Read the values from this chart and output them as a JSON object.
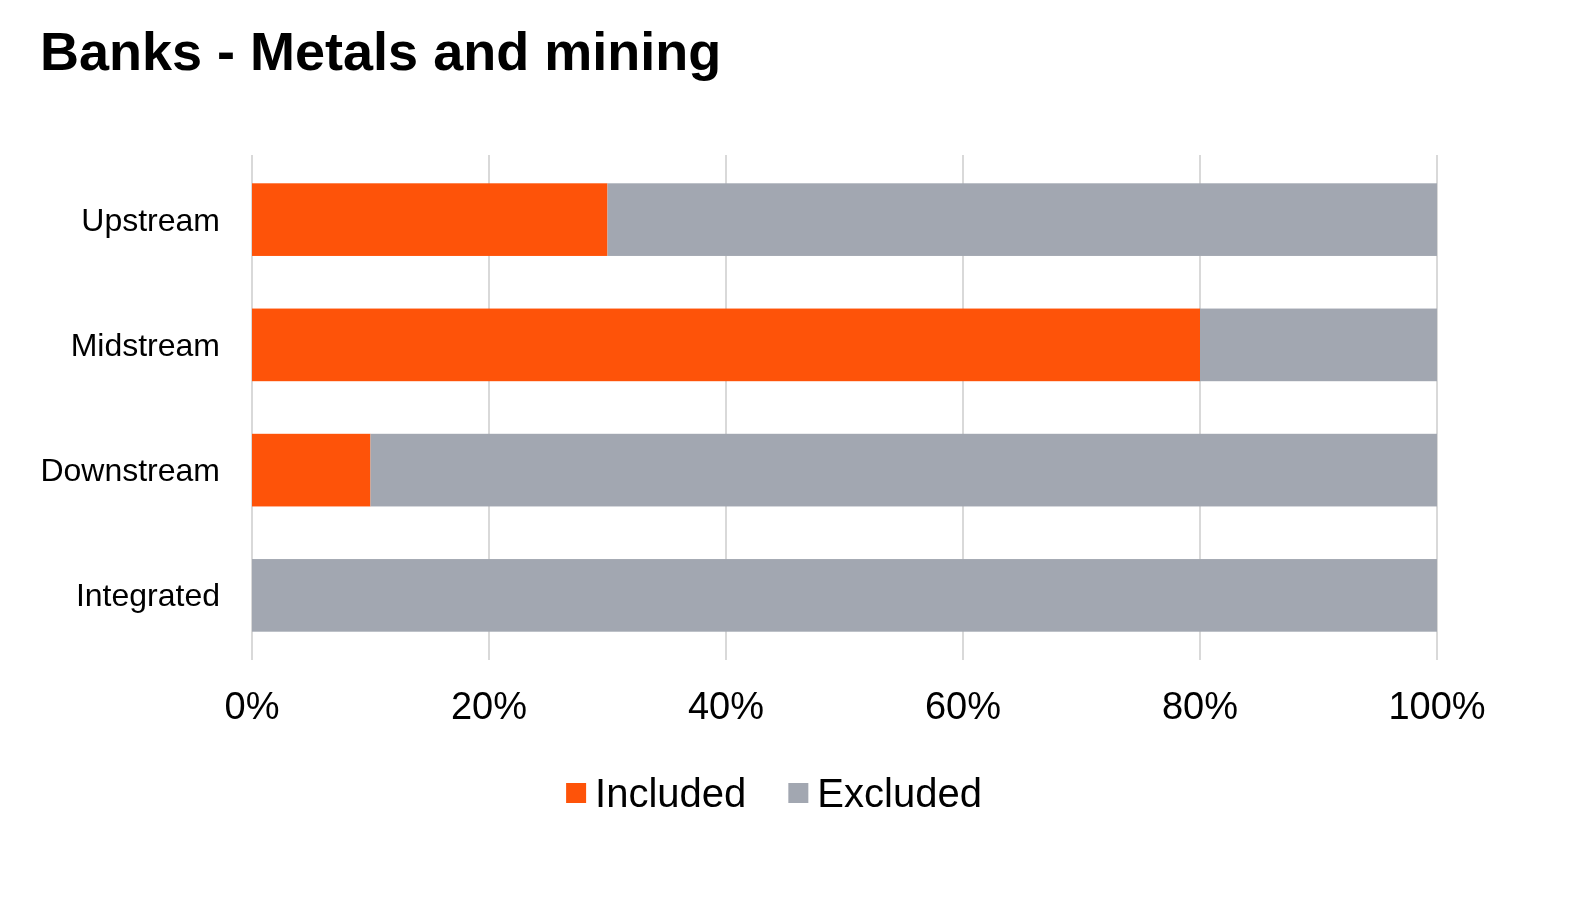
{
  "chart_data": {
    "type": "bar",
    "title": "Banks - Metals and mining",
    "orientation": "horizontal",
    "stacked": true,
    "categories": [
      "Upstream",
      "Midstream",
      "Downstream",
      "Integrated"
    ],
    "series": [
      {
        "name": "Included",
        "color": "#fe5309",
        "values": [
          30,
          80,
          10,
          0
        ]
      },
      {
        "name": "Excluded",
        "color": "#a2a7b1",
        "values": [
          70,
          20,
          90,
          100
        ]
      }
    ],
    "xlim": [
      0,
      100
    ],
    "xticks": [
      {
        "value": 0,
        "label": "0%"
      },
      {
        "value": 20,
        "label": "20%"
      },
      {
        "value": 40,
        "label": "40%"
      },
      {
        "value": 60,
        "label": "60%"
      },
      {
        "value": 80,
        "label": "80%"
      },
      {
        "value": 100,
        "label": "100%"
      }
    ],
    "grid": "x",
    "legend": "bottom"
  }
}
